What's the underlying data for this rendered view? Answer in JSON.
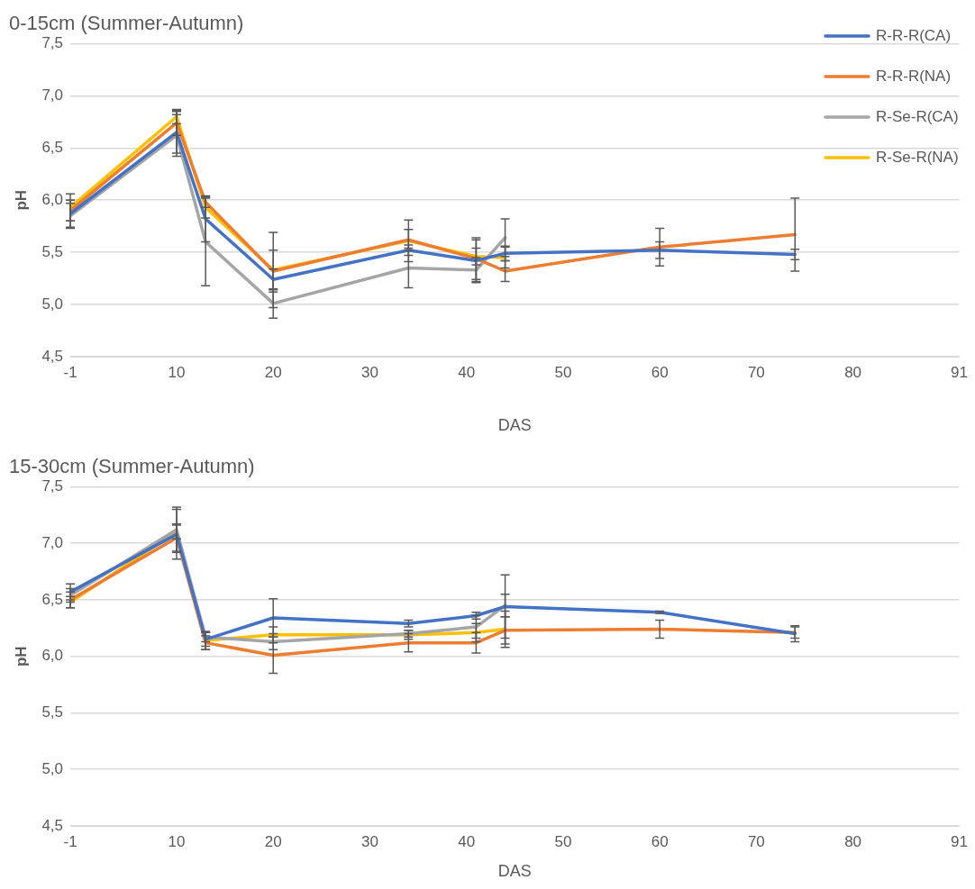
{
  "chart_data": [
    {
      "type": "line",
      "title": "0-15cm (Summer-Autumn)",
      "xlabel": "DAS",
      "ylabel": "pH",
      "x": [
        -1,
        10,
        13,
        20,
        34,
        41,
        44,
        60,
        74
      ],
      "xlim": [
        -1,
        91
      ],
      "xticks": [
        -1,
        10,
        20,
        30,
        40,
        50,
        60,
        70,
        80,
        91
      ],
      "ylim": [
        4.5,
        7.5
      ],
      "yticks": [
        {
          "value": 4.5,
          "label": "4,5"
        },
        {
          "value": 5,
          "label": "5,0"
        },
        {
          "value": 5.5,
          "label": "5,5"
        },
        {
          "value": 6,
          "label": "6,0"
        },
        {
          "value": 6.5,
          "label": "6,5"
        },
        {
          "value": 7,
          "label": "7,0"
        },
        {
          "value": 7.5,
          "label": "7,5"
        }
      ],
      "grid": "y",
      "legend": "top right",
      "marker": "none",
      "line_style": "solid",
      "series": [
        {
          "name": "R-R-R(CA)",
          "color": "#4472c4",
          "values": [
            5.87,
            6.65,
            5.82,
            5.24,
            5.52,
            5.42,
            5.49,
            5.52,
            5.48
          ],
          "errors": [
            0.13,
            0.2,
            0.22,
            0.1,
            0.05,
            0.2,
            0.07,
            0.08,
            0.05
          ]
        },
        {
          "name": "R-R-R(NA)",
          "color": "#ed7d31",
          "values": [
            5.9,
            6.74,
            5.98,
            5.32,
            5.62,
            5.44,
            5.32,
            5.55,
            5.67
          ],
          "errors": [
            0.1,
            0.12,
            0.05,
            0.2,
            0.1,
            0.2,
            0.1,
            0.18,
            0.35
          ]
        },
        {
          "name": "R-Se-R(CA)",
          "color": "#a5a5a5",
          "values": [
            5.85,
            6.62,
            5.6,
            5.01,
            5.35,
            5.33,
            5.64,
            null,
            null
          ],
          "errors": [
            0.12,
            0.2,
            0.42,
            0.14,
            0.19,
            0.12,
            0.18,
            null,
            null
          ]
        },
        {
          "name": "R-Se-R(NA)",
          "color": "#ffc000",
          "values": [
            5.93,
            6.8,
            5.93,
            5.33,
            5.61,
            5.46,
            5.45,
            null,
            null
          ],
          "errors": [
            0.13,
            0.07,
            0.1,
            0.36,
            0.2,
            0.08,
            0.1,
            null,
            null
          ]
        }
      ]
    },
    {
      "type": "line",
      "title": "15-30cm (Summer-Autumn)",
      "xlabel": "DAS",
      "ylabel": "pH",
      "x": [
        -1,
        10,
        13,
        20,
        34,
        41,
        44,
        60,
        74
      ],
      "xlim": [
        -1,
        91
      ],
      "xticks": [
        -1,
        10,
        20,
        30,
        40,
        50,
        60,
        70,
        80,
        91
      ],
      "ylim": [
        4.5,
        7.5
      ],
      "yticks": [
        {
          "value": 4.5,
          "label": "4,5"
        },
        {
          "value": 5,
          "label": "5,0"
        },
        {
          "value": 5.5,
          "label": "5,5"
        },
        {
          "value": 6,
          "label": "6,0"
        },
        {
          "value": 6.5,
          "label": "6,5"
        },
        {
          "value": 7,
          "label": "7,0"
        },
        {
          "value": 7.5,
          "label": "7,5"
        }
      ],
      "grid": "y",
      "marker": "none",
      "line_style": "solid",
      "series": [
        {
          "color": "#4472c4",
          "values": [
            6.57,
            7.08,
            6.15,
            6.34,
            6.29,
            6.36,
            6.44,
            6.39,
            6.2
          ],
          "errors": [
            0.07,
            0.22,
            0.06,
            0.17,
            0.03,
            0.03,
            0.28,
            0.01,
            0.07
          ]
        },
        {
          "color": "#ed7d31",
          "values": [
            6.5,
            7.05,
            6.12,
            6.01,
            6.12,
            6.12,
            6.23,
            6.24,
            6.21
          ],
          "errors": [
            0.07,
            0.12,
            0.06,
            0.16,
            0.08,
            0.09,
            0.12,
            0.08,
            0.05
          ]
        },
        {
          "color": "#a5a5a5",
          "values": [
            6.54,
            7.12,
            6.17,
            6.13,
            6.2,
            6.26,
            6.45,
            null,
            null
          ],
          "errors": [
            0.06,
            0.2,
            0.04,
            0.07,
            0.03,
            0.1,
            0.1,
            null,
            null
          ]
        },
        {
          "color": "#ffc000",
          "values": [
            6.48,
            7.1,
            6.14,
            6.19,
            6.19,
            6.21,
            6.24,
            null,
            null
          ],
          "errors": [
            0.05,
            0.06,
            0.08,
            0.07,
            0.04,
            0.08,
            0.16,
            null,
            null
          ]
        }
      ]
    }
  ]
}
